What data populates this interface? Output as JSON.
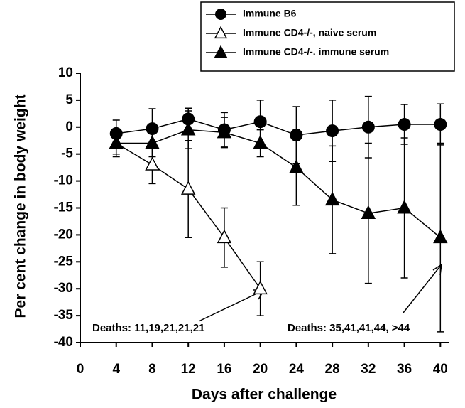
{
  "chart_data": {
    "type": "line",
    "xlabel": "Days after challenge",
    "ylabel": "Per cent change in body weight",
    "x": [
      4,
      8,
      12,
      16,
      20,
      24,
      28,
      32,
      36,
      40
    ],
    "series": [
      {
        "name": "Immune B6",
        "color": "#000000",
        "marker": "circle",
        "values": [
          -1.2,
          -0.3,
          1.5,
          -0.5,
          1,
          -1.5,
          -0.7,
          0,
          0.5,
          0.5
        ],
        "errors": [
          2.5,
          3.7,
          2,
          3.2,
          4,
          5.3,
          5.7,
          5.7,
          3.7,
          3.8
        ]
      },
      {
        "name": "Immune CD4-/-, naive serum",
        "color": "#000000",
        "marker": "triangle-open",
        "values": [
          -3,
          -7,
          -11.5,
          -20.5,
          -30,
          null,
          null,
          null,
          null,
          null
        ],
        "errors": [
          2.5,
          3.5,
          9,
          5.5,
          5,
          null,
          null,
          null,
          null,
          null
        ]
      },
      {
        "name": "Immune CD4-/-. immune serum",
        "color": "#000000",
        "marker": "triangle",
        "values": [
          -3,
          -3,
          -0.5,
          -1,
          -3,
          -7.5,
          -13.5,
          -16,
          -15,
          -20.5
        ],
        "errors": [
          2,
          2.5,
          3.5,
          2.8,
          2.5,
          7,
          10,
          13,
          13,
          17.5
        ]
      }
    ],
    "annotations": [
      "Deaths: 11,19,21,21,21",
      "Deaths: 35,41,41,44, >44"
    ],
    "xlim": [
      0,
      41
    ],
    "xticks": [
      0,
      4,
      8,
      12,
      16,
      20,
      24,
      28,
      32,
      36,
      40
    ],
    "ylim": [
      -40,
      10
    ],
    "yticks": [
      -40,
      -35,
      -30,
      -25,
      -20,
      -15,
      -10,
      -5,
      0,
      5,
      10
    ],
    "legend": "top-right"
  }
}
